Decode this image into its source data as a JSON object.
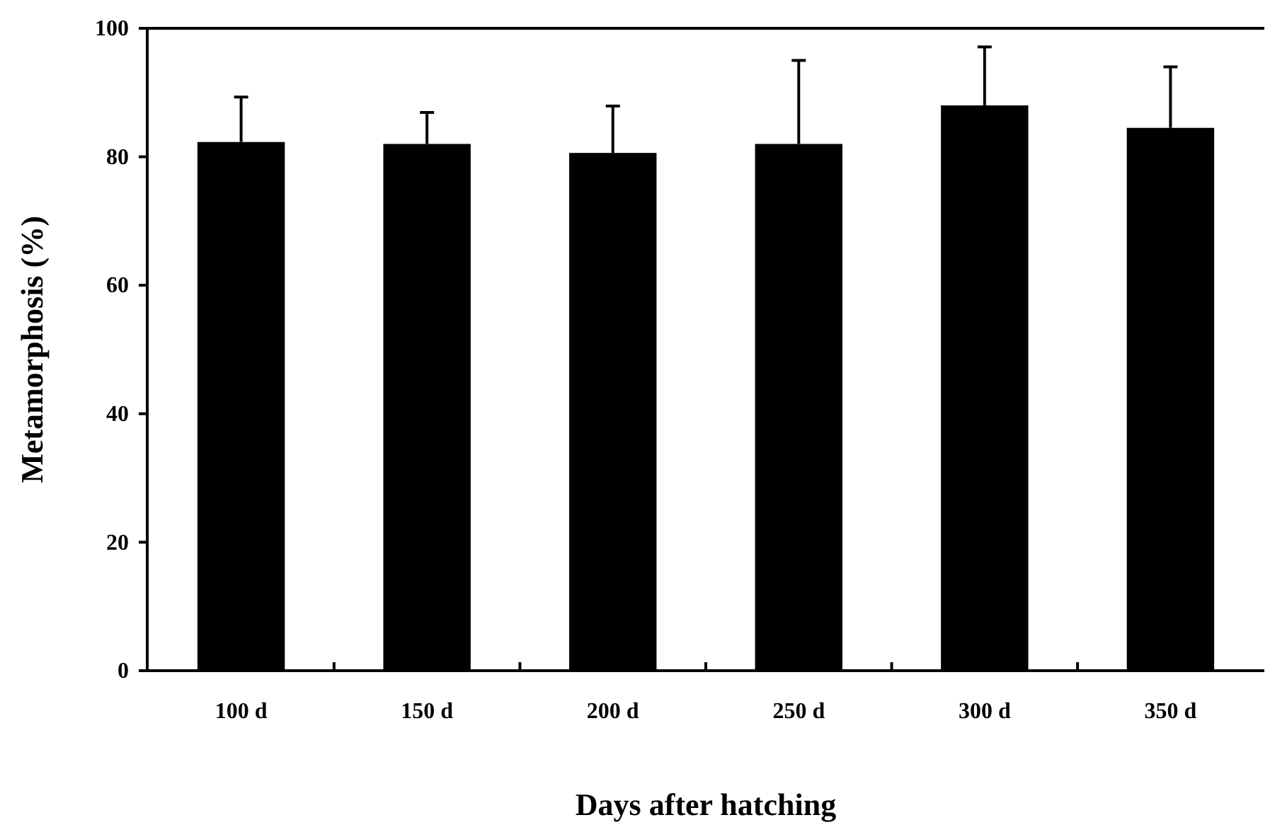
{
  "chart_data": {
    "type": "bar",
    "xlabel": "Days after hatching",
    "ylabel": "Metamorphosis (%)",
    "categories": [
      "100 d",
      "150 d",
      "200 d",
      "250 d",
      "300 d",
      "350 d"
    ],
    "values": [
      82.3,
      82.0,
      80.6,
      82.0,
      88.0,
      84.5
    ],
    "errors": [
      [
        82.3,
        89.3
      ],
      [
        82.0,
        86.9
      ],
      [
        80.6,
        87.9
      ],
      [
        82.0,
        95.0
      ],
      [
        88.0,
        97.1
      ],
      [
        84.5,
        94.0
      ]
    ],
    "color": "#000000",
    "ylim": [
      0,
      100
    ],
    "yticks": [
      0,
      20,
      40,
      60,
      80,
      100
    ],
    "grid": false
  }
}
